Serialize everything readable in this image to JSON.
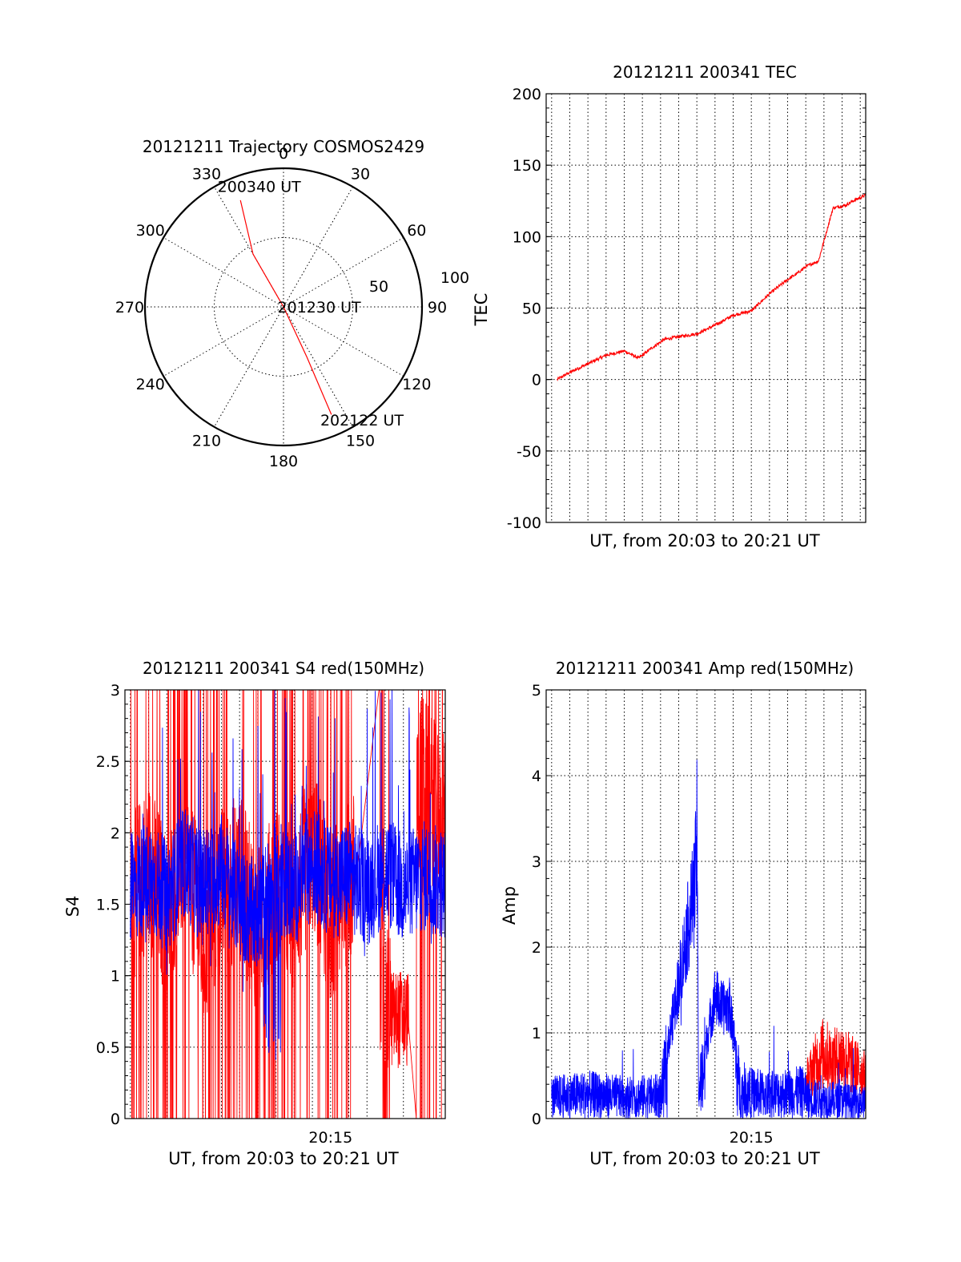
{
  "colors": {
    "red": "#ff0000",
    "blue": "#0000ff"
  },
  "chart_data": [
    {
      "id": "trajectory",
      "type": "polar",
      "title": "20121211 Trajectory COSMOS2429",
      "azimuth_labels": [
        "0",
        "30",
        "60",
        "90",
        "120",
        "150",
        "180",
        "210",
        "240",
        "270",
        "300",
        "330"
      ],
      "azimuth_values": [
        0,
        30,
        60,
        90,
        120,
        150,
        180,
        210,
        240,
        270,
        300,
        330
      ],
      "radius_labels": [
        "50",
        "100"
      ],
      "rlim": [
        0,
        100
      ],
      "track": [
        {
          "az": 338,
          "zen": 83
        },
        {
          "az": 330,
          "zen": 44
        },
        {
          "az": 0,
          "zen": 0
        },
        {
          "az": 155,
          "zen": 40
        },
        {
          "az": 156,
          "zen": 85
        }
      ],
      "annotations": [
        {
          "text": "200340 UT",
          "az": 345,
          "zen": 90
        },
        {
          "text": "201230 UT",
          "az": 90,
          "zen": 20
        },
        {
          "text": "202122 UT",
          "az": 148,
          "zen": 96
        }
      ],
      "series_color": "red"
    },
    {
      "id": "tec",
      "type": "line",
      "title": "20121211 200341 TEC",
      "xlabel": "UT, from 20:03 to 20:21 UT",
      "ylabel": "TEC",
      "ylim": [
        -100,
        200
      ],
      "yticks": [
        "200",
        "150",
        "100",
        "50",
        "0",
        "-50",
        "-100"
      ],
      "ytick_values": [
        200,
        150,
        100,
        50,
        0,
        -50,
        -100
      ],
      "xlim_min": [
        3.7,
        21.3
      ],
      "series": [
        {
          "color": "red",
          "x_min": [
            4.3,
            5,
            6,
            7,
            8,
            8.8,
            9.5,
            10.2,
            11,
            12,
            13,
            14,
            15,
            16,
            16.6,
            17,
            17.5,
            18,
            18.7,
            19.5,
            20.2,
            20.6,
            21.3
          ],
          "y": [
            0,
            5,
            11,
            17,
            20,
            15,
            22,
            28,
            30,
            32,
            38,
            45,
            48,
            60,
            66,
            70,
            74,
            79,
            83,
            120,
            122,
            125,
            129
          ]
        }
      ]
    },
    {
      "id": "s4",
      "type": "line",
      "title": "20121211 200341 S4 red(150MHz)",
      "xlabel": "UT, from 20:03 to 20:21 UT",
      "ylabel": "S4",
      "ylim": [
        0,
        3
      ],
      "yticks": [
        "3",
        "2.5",
        "2",
        "1.5",
        "1",
        "0.5",
        "0"
      ],
      "ytick_values": [
        3,
        2.5,
        2,
        1.5,
        1,
        0.5,
        0
      ],
      "xtick_label": "20:15",
      "xtick_min": 15,
      "xlim_min": [
        3.7,
        21.3
      ],
      "series": [
        {
          "color": "blue",
          "x_min": [
            4,
            5,
            6,
            7,
            8,
            9,
            10,
            11,
            12,
            13,
            14,
            15,
            16,
            17,
            18,
            19,
            20,
            21
          ],
          "y": [
            1.6,
            1.7,
            1.55,
            1.8,
            1.6,
            1.75,
            1.5,
            1.4,
            1.7,
            1.6,
            1.8,
            1.65,
            1.7,
            1.6,
            1.75,
            1.6,
            1.7,
            1.65
          ]
        },
        {
          "color": "red",
          "x_min": [
            4,
            5,
            6,
            7,
            8,
            9,
            10,
            11,
            12,
            13,
            14,
            15,
            16,
            17,
            18,
            19,
            20,
            21
          ],
          "y": [
            1.5,
            1.8,
            1.4,
            1.9,
            1.2,
            1.6,
            1.7,
            1.3,
            1.6,
            1.5,
            1.9,
            1.4,
            1.7,
            1.8,
            0.6,
            1.7,
            2.4,
            2.1
          ]
        }
      ]
    },
    {
      "id": "amp",
      "type": "line",
      "title": "20121211 200341 Amp red(150MHz)",
      "xlabel": "UT, from 20:03 to 20:21 UT",
      "ylabel": "Amp",
      "ylim": [
        0,
        5
      ],
      "yticks": [
        "5",
        "4",
        "3",
        "2",
        "1",
        "0"
      ],
      "ytick_values": [
        5,
        4,
        3,
        2,
        1,
        0
      ],
      "xtick_label": "20:15",
      "xtick_min": 15,
      "xlim_min": [
        3.7,
        21.3
      ],
      "series": [
        {
          "color": "blue",
          "x_min": [
            4,
            6,
            8,
            10,
            11.9,
            12.0,
            12.1,
            13,
            13.4,
            13.8,
            14.4,
            16,
            18,
            20,
            21.3
          ],
          "y": [
            0.4,
            0.45,
            0.4,
            0.42,
            3.4,
            4.2,
            0.5,
            1.8,
            1.6,
            1.65,
            0.5,
            0.45,
            0.5,
            0.45,
            0.4
          ]
        },
        {
          "color": "red",
          "x_min": [
            18,
            18.5,
            19,
            19.5,
            20,
            20.5,
            21,
            21.3
          ],
          "y": [
            0.6,
            0.9,
            1.1,
            0.95,
            1.05,
            0.9,
            0.8,
            0.7
          ]
        }
      ]
    }
  ]
}
